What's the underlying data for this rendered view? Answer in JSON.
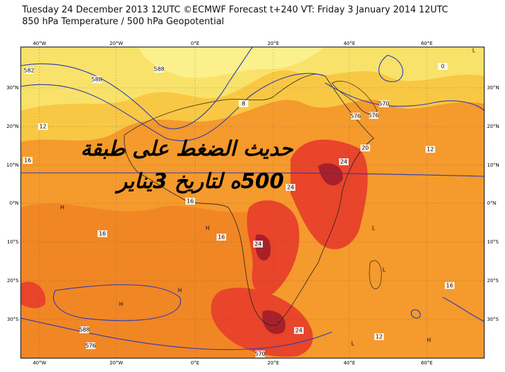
{
  "header": {
    "line1": "Tuesday 24 December 2013 12UTC ©ECMWF Forecast t+240 VT: Friday 3 January 2014 12UTC",
    "line2": "850 hPa Temperature / 500 hPa Geopotential"
  },
  "overlay": {
    "line1": "حديث الضغط على طبقة",
    "line2": "500ه لتاريخ 3يناير"
  },
  "map": {
    "lon_labels": [
      "40°W",
      "20°W",
      "0°E",
      "20°E",
      "40°E",
      "60°E"
    ],
    "lat_labels": [
      "30°N",
      "20°N",
      "10°N",
      "0°N",
      "10°S",
      "20°S",
      "30°S"
    ],
    "contour_labels": [
      "582",
      "588",
      "588",
      "576",
      "8",
      "12",
      "0",
      "570",
      "576",
      "12",
      "16",
      "16",
      "20",
      "24",
      "24",
      "24",
      "16",
      "16",
      "12",
      "570",
      "576",
      "588",
      "16",
      "24"
    ],
    "pressure_marks": [
      "H",
      "H",
      "H",
      "H",
      "L",
      "L",
      "L",
      "H",
      "L",
      "H"
    ]
  }
}
